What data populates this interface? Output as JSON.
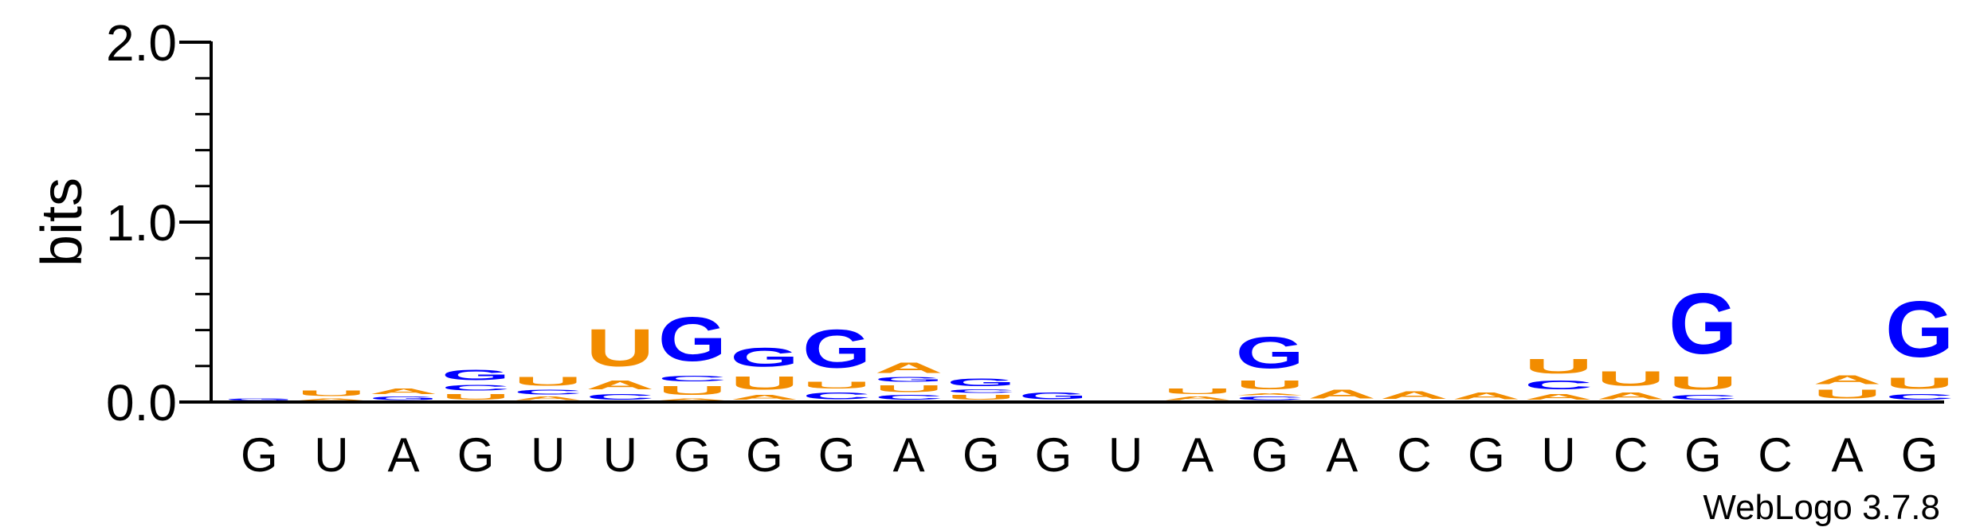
{
  "chart_data": {
    "type": "sequence-logo",
    "ylabel": "bits",
    "ylim": [
      0,
      2.0
    ],
    "yticks": [
      "0.0",
      "1.0",
      "2.0"
    ],
    "credit": "WebLogo 3.7.8",
    "colors": {
      "A": "#f28c00",
      "U": "#f28c00",
      "G": "#0000ff",
      "C": "#0000ff"
    },
    "positions": [
      {
        "label": "G",
        "stack": [
          {
            "base": "G",
            "bits": 0.02
          }
        ]
      },
      {
        "label": "U",
        "stack": [
          {
            "base": "A",
            "bits": 0.02
          },
          {
            "base": "U",
            "bits": 0.05
          }
        ]
      },
      {
        "label": "A",
        "stack": [
          {
            "base": "G",
            "bits": 0.03
          },
          {
            "base": "A",
            "bits": 0.05
          }
        ]
      },
      {
        "label": "G",
        "stack": [
          {
            "base": "U",
            "bits": 0.05
          },
          {
            "base": "C",
            "bits": 0.05
          },
          {
            "base": "G",
            "bits": 0.09
          }
        ]
      },
      {
        "label": "U",
        "stack": [
          {
            "base": "A",
            "bits": 0.03
          },
          {
            "base": "C",
            "bits": 0.04
          },
          {
            "base": "U",
            "bits": 0.08
          }
        ]
      },
      {
        "label": "U",
        "stack": [
          {
            "base": "C",
            "bits": 0.05
          },
          {
            "base": "A",
            "bits": 0.08
          },
          {
            "base": "U",
            "bits": 0.33
          }
        ]
      },
      {
        "label": "G",
        "stack": [
          {
            "base": "A",
            "bits": 0.02
          },
          {
            "base": "U",
            "bits": 0.08
          },
          {
            "base": "C",
            "bits": 0.05
          },
          {
            "base": "G",
            "bits": 0.39
          }
        ]
      },
      {
        "label": "G",
        "stack": [
          {
            "base": "A",
            "bits": 0.04
          },
          {
            "base": "U",
            "bits": 0.12
          },
          {
            "base": "G",
            "bits": 0.17
          }
        ]
      },
      {
        "label": "G",
        "stack": [
          {
            "base": "C",
            "bits": 0.06
          },
          {
            "base": "U",
            "bits": 0.06
          },
          {
            "base": "G",
            "bits": 0.34
          }
        ]
      },
      {
        "label": "A",
        "stack": [
          {
            "base": "C",
            "bits": 0.04
          },
          {
            "base": "U",
            "bits": 0.06
          },
          {
            "base": "G",
            "bits": 0.04
          },
          {
            "base": "A",
            "bits": 0.09
          }
        ]
      },
      {
        "label": "G",
        "stack": [
          {
            "base": "U",
            "bits": 0.04
          },
          {
            "base": "C",
            "bits": 0.03
          },
          {
            "base": "G",
            "bits": 0.07
          }
        ]
      },
      {
        "label": "G",
        "stack": [
          {
            "base": "G",
            "bits": 0.06
          }
        ]
      },
      {
        "label": "U",
        "stack": [
          {
            "base": "U",
            "bits": 0.005
          }
        ]
      },
      {
        "label": "A",
        "stack": [
          {
            "base": "A",
            "bits": 0.03
          },
          {
            "base": "U",
            "bits": 0.05
          }
        ]
      },
      {
        "label": "G",
        "stack": [
          {
            "base": "C",
            "bits": 0.03
          },
          {
            "base": "A",
            "bits": 0.02
          },
          {
            "base": "U",
            "bits": 0.08
          },
          {
            "base": "G",
            "bits": 0.28
          }
        ]
      },
      {
        "label": "A",
        "stack": [
          {
            "base": "A",
            "bits": 0.08
          }
        ]
      },
      {
        "label": "C",
        "stack": [
          {
            "base": "A",
            "bits": 0.07
          }
        ]
      },
      {
        "label": "G",
        "stack": [
          {
            "base": "A",
            "bits": 0.06
          }
        ]
      },
      {
        "label": "U",
        "stack": [
          {
            "base": "A",
            "bits": 0.05
          },
          {
            "base": "C",
            "bits": 0.08
          },
          {
            "base": "U",
            "bits": 0.13
          }
        ]
      },
      {
        "label": "C",
        "stack": [
          {
            "base": "A",
            "bits": 0.06
          },
          {
            "base": "U",
            "bits": 0.13
          }
        ]
      },
      {
        "label": "G",
        "stack": [
          {
            "base": "C",
            "bits": 0.04
          },
          {
            "base": "U",
            "bits": 0.12
          },
          {
            "base": "G",
            "bits": 0.54
          }
        ]
      },
      {
        "label": "C",
        "stack": []
      },
      {
        "label": "A",
        "stack": [
          {
            "base": "U",
            "bits": 0.08
          },
          {
            "base": "A",
            "bits": 0.08
          }
        ]
      },
      {
        "label": "G",
        "stack": [
          {
            "base": "C",
            "bits": 0.05
          },
          {
            "base": "U",
            "bits": 0.1
          },
          {
            "base": "G",
            "bits": 0.5
          }
        ]
      }
    ]
  }
}
